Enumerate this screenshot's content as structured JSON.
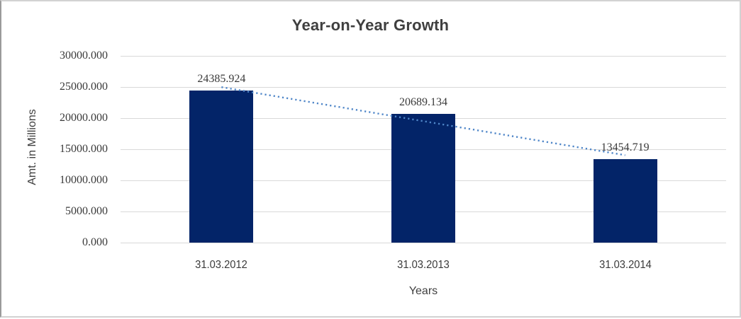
{
  "chart_data": {
    "type": "bar",
    "title": "Year-on-Year Growth",
    "xlabel": "Years",
    "ylabel": "Amt. in Millions",
    "categories": [
      "31.03.2012",
      "31.03.2013",
      "31.03.2014"
    ],
    "values": [
      24385.924,
      20689.134,
      13454.719
    ],
    "data_labels": [
      "24385.924",
      "20689.134",
      "13454.719"
    ],
    "ylim": [
      0,
      30000
    ],
    "ytick_step": 5000,
    "ytick_labels": [
      "0.000",
      "5000.000",
      "10000.000",
      "15000.000",
      "20000.000",
      "25000.000",
      "30000.000"
    ],
    "grid": true,
    "legend_position": "none",
    "trendline": {
      "type": "linear",
      "style": "dotted"
    },
    "colors": {
      "bar": "#032468",
      "trendline": "#4f86c8",
      "gridline": "#d9d9d9",
      "text": "#3a3a3a",
      "title": "#3f3f3f",
      "frame_border": "#d2d2d2"
    }
  }
}
